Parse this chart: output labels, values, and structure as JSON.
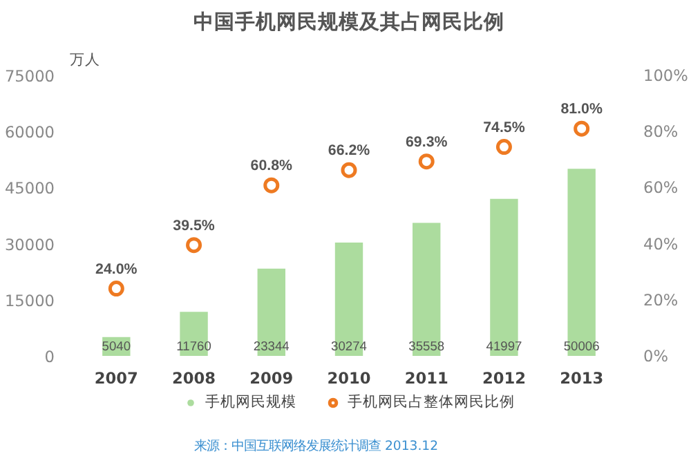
{
  "chart_data": {
    "type": "bar",
    "title": "中国手机网民规模及其占网民比例",
    "ylabel": "万人",
    "categories": [
      "2007",
      "2008",
      "2009",
      "2010",
      "2011",
      "2012",
      "2013"
    ],
    "series": [
      {
        "name": "手机网民规模",
        "color": "#acdc9e",
        "values": [
          5040,
          11760,
          23344,
          30274,
          35558,
          41997,
          50006
        ],
        "value_labels": [
          "5040",
          "11760",
          "23344",
          "30274",
          "35558",
          "41997",
          "50006"
        ]
      },
      {
        "name": "手机网民占整体网民比例",
        "type": "scatter",
        "axis": "y2",
        "color": "#ee7a22",
        "values": [
          24.0,
          39.5,
          60.8,
          66.2,
          69.3,
          74.5,
          81.0
        ],
        "value_labels": [
          "24.0%",
          "39.5%",
          "60.8%",
          "66.2%",
          "69.3%",
          "74.5%",
          "81.0%"
        ]
      }
    ],
    "ylim": [
      0,
      75000
    ],
    "yticks": [
      0,
      15000,
      30000,
      45000,
      60000,
      75000
    ],
    "y2lim": [
      0,
      100
    ],
    "y2ticks": [
      {
        "value": 0,
        "label": "0%"
      },
      {
        "value": 20,
        "label": "20%"
      },
      {
        "value": 40,
        "label": "40%"
      },
      {
        "value": 60,
        "label": "60%"
      },
      {
        "value": 80,
        "label": "80%"
      },
      {
        "value": 100,
        "label": "100%"
      }
    ],
    "marker": "circle",
    "grid": false,
    "legend": "bottom",
    "annotations": [
      "来源：中国互联网络发展统计调查 2013.12"
    ]
  }
}
